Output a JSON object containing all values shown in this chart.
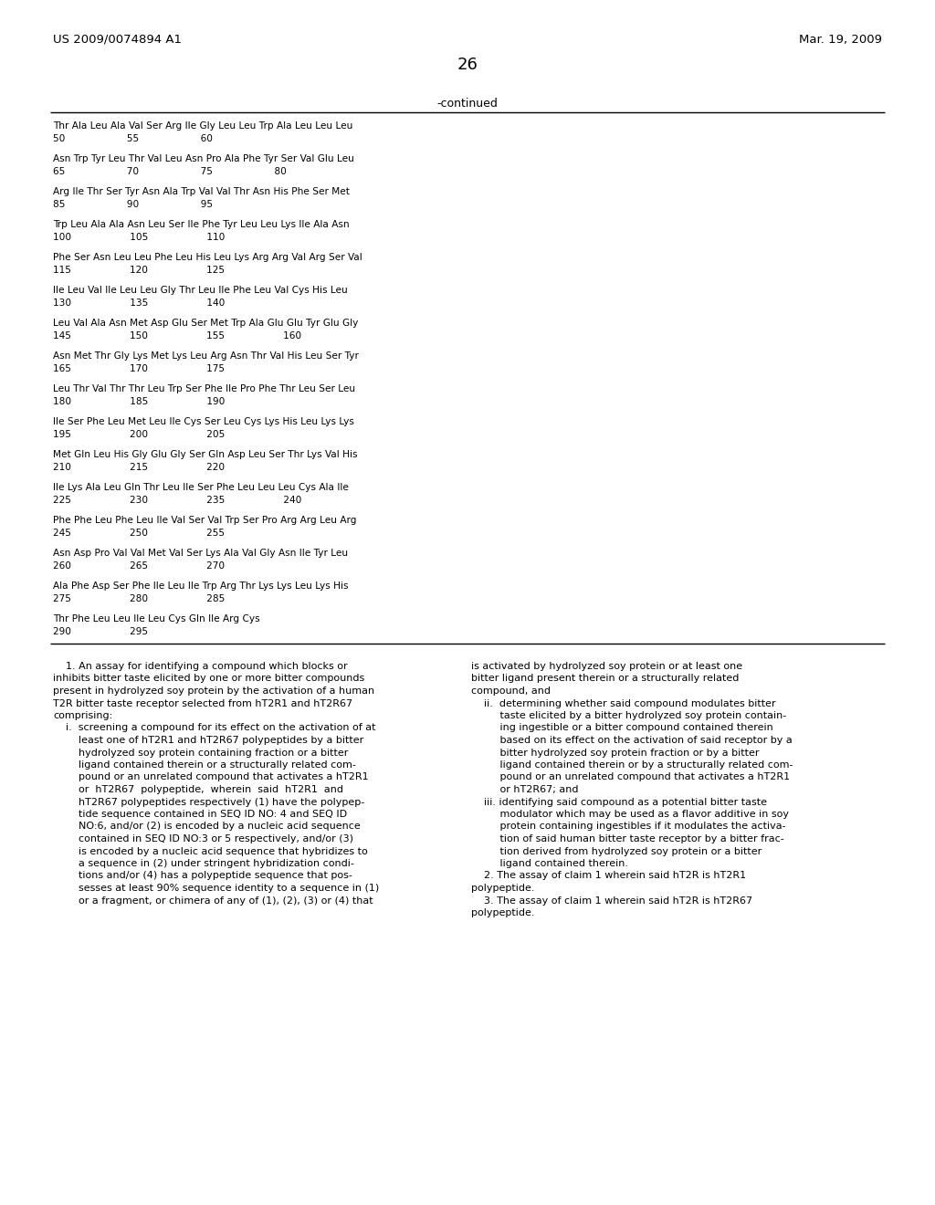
{
  "header_left": "US 2009/0074894 A1",
  "header_right": "Mar. 19, 2009",
  "page_number": "26",
  "continued_label": "-continued",
  "sequence_lines": [
    [
      "Thr Ala Leu Ala Val Ser Arg Ile Gly Leu Leu Trp Ala Leu Leu Leu",
      "50                    55                    60"
    ],
    [
      "Asn Trp Tyr Leu Thr Val Leu Asn Pro Ala Phe Tyr Ser Val Glu Leu",
      "65                    70                    75                    80"
    ],
    [
      "Arg Ile Thr Ser Tyr Asn Ala Trp Val Val Thr Asn His Phe Ser Met",
      "85                    90                    95"
    ],
    [
      "Trp Leu Ala Ala Asn Leu Ser Ile Phe Tyr Leu Leu Lys Ile Ala Asn",
      "100                   105                   110"
    ],
    [
      "Phe Ser Asn Leu Leu Phe Leu His Leu Lys Arg Arg Val Arg Ser Val",
      "115                   120                   125"
    ],
    [
      "Ile Leu Val Ile Leu Leu Gly Thr Leu Ile Phe Leu Val Cys His Leu",
      "130                   135                   140"
    ],
    [
      "Leu Val Ala Asn Met Asp Glu Ser Met Trp Ala Glu Glu Tyr Glu Gly",
      "145                   150                   155                   160"
    ],
    [
      "Asn Met Thr Gly Lys Met Lys Leu Arg Asn Thr Val His Leu Ser Tyr",
      "165                   170                   175"
    ],
    [
      "Leu Thr Val Thr Thr Leu Trp Ser Phe Ile Pro Phe Thr Leu Ser Leu",
      "180                   185                   190"
    ],
    [
      "Ile Ser Phe Leu Met Leu Ile Cys Ser Leu Cys Lys His Leu Lys Lys",
      "195                   200                   205"
    ],
    [
      "Met Gln Leu His Gly Glu Gly Ser Gln Asp Leu Ser Thr Lys Val His",
      "210                   215                   220"
    ],
    [
      "Ile Lys Ala Leu Gln Thr Leu Ile Ser Phe Leu Leu Leu Cys Ala Ile",
      "225                   230                   235                   240"
    ],
    [
      "Phe Phe Leu Phe Leu Ile Val Ser Val Trp Ser Pro Arg Arg Leu Arg",
      "245                   250                   255"
    ],
    [
      "Asn Asp Pro Val Val Met Val Ser Lys Ala Val Gly Asn Ile Tyr Leu",
      "260                   265                   270"
    ],
    [
      "Ala Phe Asp Ser Phe Ile Leu Ile Trp Arg Thr Lys Lys Leu Lys His",
      "275                   280                   285"
    ],
    [
      "Thr Phe Leu Leu Ile Leu Cys Gln Ile Arg Cys",
      "290                   295"
    ]
  ],
  "claims_left": [
    {
      "text": "    1. An assay for identifying a compound which blocks or",
      "bold_ranges": [
        [
          4,
          5
        ]
      ]
    },
    {
      "text": "inhibits bitter taste elicited by one or more bitter compounds",
      "bold_ranges": []
    },
    {
      "text": "present in hydrolyzed soy protein by the activation of a human",
      "bold_ranges": []
    },
    {
      "text": "T2R bitter taste receptor selected from hT2R1 and hT2R67",
      "bold_ranges": []
    },
    {
      "text": "comprising:",
      "bold_ranges": []
    },
    {
      "text": "    i.  screening a compound for its effect on the activation of at",
      "bold_ranges": []
    },
    {
      "text": "        least one of hT2R1 and hT2R67 polypeptides by a bitter",
      "bold_ranges": []
    },
    {
      "text": "        hydrolyzed soy protein containing fraction or a bitter",
      "bold_ranges": []
    },
    {
      "text": "        ligand contained therein or a structurally related com-",
      "bold_ranges": []
    },
    {
      "text": "        pound or an unrelated compound that activates a hT2R1",
      "bold_ranges": []
    },
    {
      "text": "        or  hT2R67  polypeptide,  wherein  said  hT2R1  and",
      "bold_ranges": []
    },
    {
      "text": "        hT2R67 polypeptides respectively (1) have the polypep-",
      "bold_ranges": []
    },
    {
      "text": "        tide sequence contained in SEQ ID NO: 4 and SEQ ID",
      "bold_ranges": []
    },
    {
      "text": "        NO:6, and/or (2) is encoded by a nucleic acid sequence",
      "bold_ranges": []
    },
    {
      "text": "        contained in SEQ ID NO:3 or 5 respectively, and/or (3)",
      "bold_ranges": []
    },
    {
      "text": "        is encoded by a nucleic acid sequence that hybridizes to",
      "bold_ranges": []
    },
    {
      "text": "        a sequence in (2) under stringent hybridization condi-",
      "bold_ranges": []
    },
    {
      "text": "        tions and/or (4) has a polypeptide sequence that pos-",
      "bold_ranges": []
    },
    {
      "text": "        sesses at least 90% sequence identity to a sequence in (1)",
      "bold_ranges": []
    },
    {
      "text": "        or a fragment, or chimera of any of (1), (2), (3) or (4) that",
      "bold_ranges": []
    }
  ],
  "claims_right": [
    "is activated by hydrolyzed soy protein or at least one",
    "bitter ligand present therein or a structurally related",
    "compound, and",
    "    ii.  determining whether said compound modulates bitter",
    "         taste elicited by a bitter hydrolyzed soy protein contain-",
    "         ing ingestible or a bitter compound contained therein",
    "         based on its effect on the activation of said receptor by a",
    "         bitter hydrolyzed soy protein fraction or by a bitter",
    "         ligand contained therein or by a structurally related com-",
    "         pound or an unrelated compound that activates a hT2R1",
    "         or hT2R67; and",
    "    iii. identifying said compound as a potential bitter taste",
    "         modulator which may be used as a flavor additive in soy",
    "         protein containing ingestibles if it modulates the activa-",
    "         tion of said human bitter taste receptor by a bitter frac-",
    "         tion derived from hydrolyzed soy protein or a bitter",
    "         ligand contained therein.",
    "    2. The assay of claim 1 wherein said hT2R is hT2R1",
    "polypeptide.",
    "    3. The assay of claim 1 wherein said hT2R is hT2R67",
    "polypeptide."
  ],
  "bg_color": "#ffffff",
  "text_color": "#000000"
}
